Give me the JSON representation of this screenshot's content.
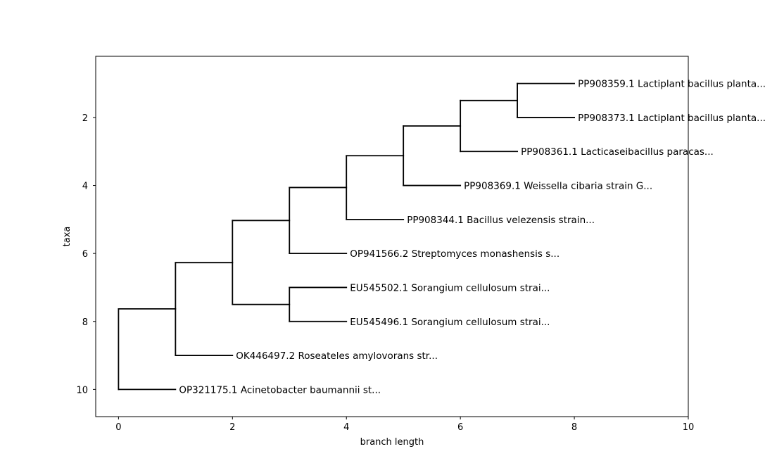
{
  "chart_data": {
    "type": "dendrogram",
    "title": "",
    "xlabel": "branch length",
    "ylabel": "taxa",
    "xlim": [
      -0.4,
      10
    ],
    "ylim": [
      10.8,
      0.2
    ],
    "y_inverted": true,
    "grid": false,
    "xticks": [
      0,
      2,
      4,
      6,
      8,
      10
    ],
    "yticks": [
      2,
      4,
      6,
      8,
      10
    ],
    "leaves": [
      {
        "label": "PP908359.1 Lactiplant bacillus planta...",
        "x": 8,
        "y": 1
      },
      {
        "label": "PP908373.1 Lactiplant bacillus planta...",
        "x": 8,
        "y": 2
      },
      {
        "label": "PP908361.1 Lacticaseibacillus paracas...",
        "x": 7,
        "y": 3
      },
      {
        "label": "PP908369.1 Weissella cibaria strain G...",
        "x": 6,
        "y": 4
      },
      {
        "label": "PP908344.1 Bacillus velezensis strain...",
        "x": 5,
        "y": 5
      },
      {
        "label": "OP941566.2 Streptomyces monashensis s...",
        "x": 4,
        "y": 6
      },
      {
        "label": "EU545502.1 Sorangium cellulosum strai...",
        "x": 4,
        "y": 7
      },
      {
        "label": "EU545496.1 Sorangium cellulosum strai...",
        "x": 4,
        "y": 8
      },
      {
        "label": "OK446497.2 Roseateles amylovorans str...",
        "x": 2,
        "y": 9
      },
      {
        "label": "OP321175.1 Acinetobacter baumannii st...",
        "x": 1,
        "y": 10
      }
    ],
    "segments": [
      [
        7,
        1,
        8,
        1
      ],
      [
        7,
        2,
        8,
        2
      ],
      [
        7,
        1,
        7,
        2
      ],
      [
        6,
        1.5,
        7,
        1.5
      ],
      [
        6,
        3,
        7,
        3
      ],
      [
        6,
        1.5,
        6,
        3
      ],
      [
        5,
        2.25,
        6,
        2.25
      ],
      [
        5,
        4,
        6,
        4
      ],
      [
        5,
        2.25,
        5,
        4
      ],
      [
        4,
        3.125,
        5,
        3.125
      ],
      [
        4,
        5,
        5,
        5
      ],
      [
        4,
        3.125,
        4,
        5
      ],
      [
        3,
        4.06,
        4,
        4.06
      ],
      [
        3,
        6,
        4,
        6
      ],
      [
        3,
        4.06,
        3,
        6
      ],
      [
        3,
        7,
        4,
        7
      ],
      [
        3,
        8,
        4,
        8
      ],
      [
        3,
        7,
        3,
        8
      ],
      [
        2,
        5.03,
        3,
        5.03
      ],
      [
        2,
        7.5,
        3,
        7.5
      ],
      [
        2,
        5.03,
        2,
        7.5
      ],
      [
        1,
        6.27,
        2,
        6.27
      ],
      [
        1,
        9,
        2,
        9
      ],
      [
        1,
        6.27,
        1,
        9
      ],
      [
        0,
        7.63,
        1,
        7.63
      ],
      [
        0,
        10,
        1,
        10
      ],
      [
        0,
        7.63,
        0,
        10
      ]
    ]
  }
}
